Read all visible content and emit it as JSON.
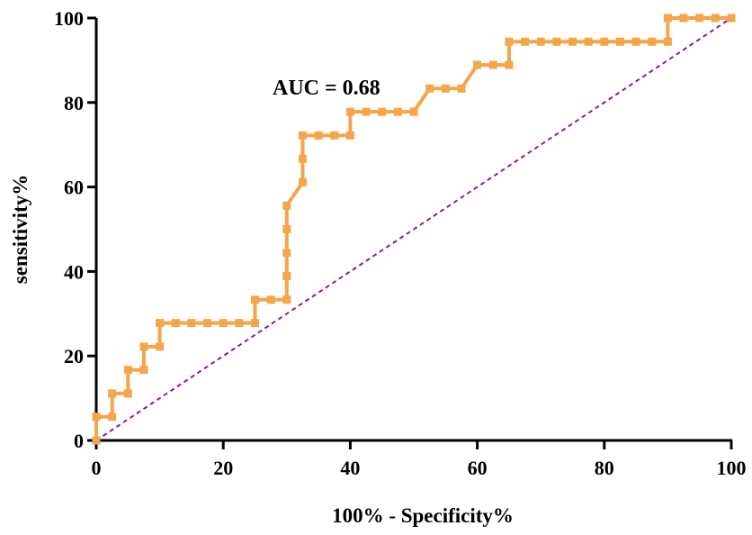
{
  "chart_data": {
    "type": "line",
    "title": "",
    "xlabel": "100% - Specificity%",
    "ylabel": "sensitivity%",
    "xlim": [
      0,
      100
    ],
    "ylim": [
      0,
      100
    ],
    "x_ticks": [
      "0",
      "20",
      "40",
      "60",
      "80",
      "100"
    ],
    "y_ticks": [
      "0",
      "20",
      "40",
      "60",
      "80",
      "100"
    ],
    "grid": false,
    "annotation": "AUC = 0.68",
    "colors": {
      "roc": "#F5A54A",
      "reference": "#8B1A9B"
    },
    "series": [
      {
        "style": "step-line-with-square-markers",
        "points": [
          [
            0,
            0
          ],
          [
            0,
            5.6
          ],
          [
            2.5,
            5.6
          ],
          [
            2.5,
            11.1
          ],
          [
            5,
            11.1
          ],
          [
            5,
            16.7
          ],
          [
            7.5,
            16.7
          ],
          [
            7.5,
            22.2
          ],
          [
            10,
            22.2
          ],
          [
            10,
            27.8
          ],
          [
            12.5,
            27.8
          ],
          [
            15,
            27.8
          ],
          [
            17.5,
            27.8
          ],
          [
            20,
            27.8
          ],
          [
            22.5,
            27.8
          ],
          [
            25,
            27.8
          ],
          [
            25,
            33.3
          ],
          [
            27.5,
            33.3
          ],
          [
            30,
            33.3
          ],
          [
            30,
            38.9
          ],
          [
            30,
            44.4
          ],
          [
            30,
            50
          ],
          [
            30,
            55.6
          ],
          [
            32.5,
            61.1
          ],
          [
            32.5,
            66.7
          ],
          [
            32.5,
            72.2
          ],
          [
            35,
            72.2
          ],
          [
            37.5,
            72.2
          ],
          [
            40,
            72.2
          ],
          [
            40,
            77.8
          ],
          [
            42.5,
            77.8
          ],
          [
            45,
            77.8
          ],
          [
            47.5,
            77.8
          ],
          [
            50,
            77.8
          ],
          [
            52.5,
            83.3
          ],
          [
            55,
            83.3
          ],
          [
            57.5,
            83.3
          ],
          [
            60,
            88.9
          ],
          [
            62.5,
            88.9
          ],
          [
            65,
            88.9
          ],
          [
            65,
            94.4
          ],
          [
            67.5,
            94.4
          ],
          [
            70,
            94.4
          ],
          [
            72.5,
            94.4
          ],
          [
            75,
            94.4
          ],
          [
            77.5,
            94.4
          ],
          [
            80,
            94.4
          ],
          [
            82.5,
            94.4
          ],
          [
            85,
            94.4
          ],
          [
            87.5,
            94.4
          ],
          [
            90,
            94.4
          ],
          [
            90,
            100
          ],
          [
            92.5,
            100
          ],
          [
            95,
            100
          ],
          [
            97.5,
            100
          ],
          [
            100,
            100
          ]
        ]
      },
      {
        "style": "dashed-reference",
        "points": [
          [
            0,
            0
          ],
          [
            100,
            100
          ]
        ]
      }
    ]
  }
}
